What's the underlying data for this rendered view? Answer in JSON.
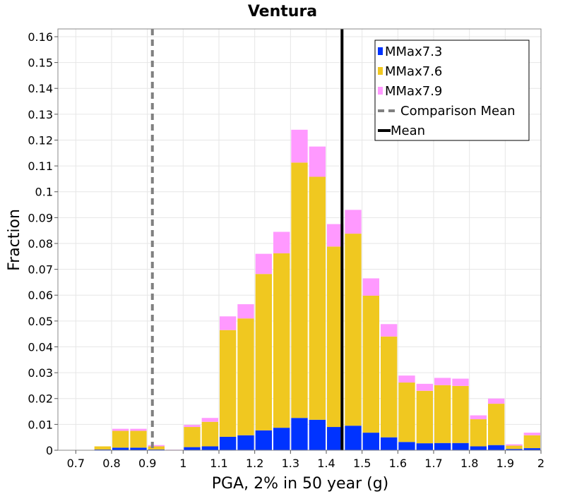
{
  "chart_data": {
    "type": "bar",
    "stacked": true,
    "title": "Ventura",
    "xlabel": "PGA, 2% in 50 year (g)",
    "ylabel": "Fraction",
    "xlim": [
      0.65,
      2.0
    ],
    "ylim": [
      0,
      0.163
    ],
    "bin_width": 0.05,
    "x_ticks": [
      0.7,
      0.8,
      0.9,
      1.0,
      1.1,
      1.2,
      1.3,
      1.4,
      1.5,
      1.6,
      1.7,
      1.8,
      1.9,
      2.0
    ],
    "x_tick_labels": [
      "0.7",
      "0.8",
      "0.9",
      "1",
      "1.1",
      "1.2",
      "1.3",
      "1.4",
      "1.5",
      "1.6",
      "1.7",
      "1.8",
      "1.9",
      "2"
    ],
    "y_ticks": [
      0,
      0.01,
      0.02,
      0.03,
      0.04,
      0.05,
      0.06,
      0.07,
      0.08,
      0.09,
      0.1,
      0.11,
      0.12,
      0.13,
      0.14,
      0.15,
      0.16
    ],
    "y_tick_labels": [
      "0",
      "0.01",
      "0.02",
      "0.03",
      "0.04",
      "0.05",
      "0.06",
      "0.07",
      "0.08",
      "0.09",
      "0.1",
      "0.11",
      "0.12",
      "0.13",
      "0.14",
      "0.15",
      "0.16"
    ],
    "bin_starts": [
      0.75,
      0.8,
      0.85,
      0.9,
      0.95,
      1.0,
      1.05,
      1.1,
      1.15,
      1.2,
      1.25,
      1.3,
      1.35,
      1.4,
      1.45,
      1.5,
      1.55,
      1.6,
      1.65,
      1.7,
      1.75,
      1.8,
      1.85,
      1.9,
      1.95
    ],
    "series": [
      {
        "name": "MMax7.3",
        "color": "#0033ff",
        "values": [
          0.0003,
          0.001,
          0.001,
          0.0003,
          0.0,
          0.0012,
          0.0015,
          0.0052,
          0.0058,
          0.0077,
          0.0087,
          0.0125,
          0.0118,
          0.009,
          0.0095,
          0.0068,
          0.005,
          0.0032,
          0.0027,
          0.0028,
          0.0028,
          0.0015,
          0.002,
          0.0005,
          0.0008
        ]
      },
      {
        "name": "MMax7.6",
        "color": "#f0c820",
        "values": [
          0.0012,
          0.0065,
          0.0065,
          0.0012,
          0.0,
          0.0078,
          0.0095,
          0.0413,
          0.0452,
          0.0605,
          0.0675,
          0.0988,
          0.094,
          0.0698,
          0.0743,
          0.053,
          0.039,
          0.023,
          0.0203,
          0.0224,
          0.0221,
          0.0105,
          0.016,
          0.0013,
          0.005
        ]
      },
      {
        "name": "MMax7.9",
        "color": "#ff99ff",
        "values": [
          0.0,
          0.0008,
          0.0008,
          0.0005,
          0.0002,
          0.0008,
          0.0015,
          0.0053,
          0.0055,
          0.0078,
          0.0083,
          0.0127,
          0.0117,
          0.0087,
          0.0092,
          0.0067,
          0.0048,
          0.0027,
          0.0027,
          0.0028,
          0.0028,
          0.0015,
          0.002,
          0.0005,
          0.001
        ]
      }
    ],
    "lines": [
      {
        "name": "Comparison Mean",
        "x": 0.914,
        "style": "dashed",
        "color": "#808080"
      },
      {
        "name": "Mean",
        "x": 1.444,
        "style": "solid",
        "color": "#000000"
      }
    ],
    "legend": {
      "position": "top-right",
      "entries": [
        "MMax7.3",
        "MMax7.6",
        "MMax7.9",
        "Comparison Mean",
        "Mean"
      ]
    },
    "grid": true
  }
}
